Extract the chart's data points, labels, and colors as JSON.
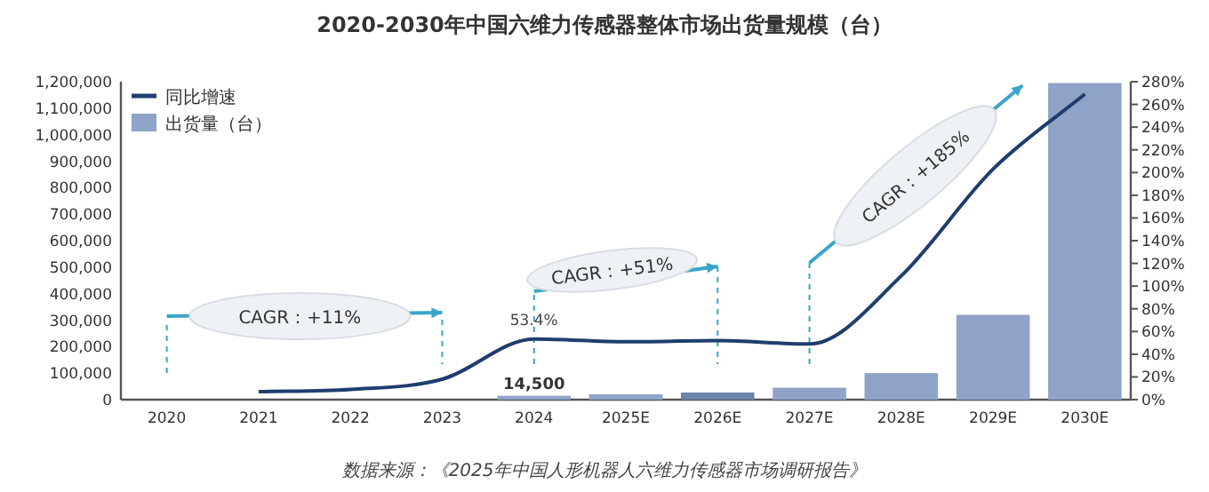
{
  "chart_data": {
    "type": "bar",
    "title": "2020-2030年中国六维力传感器整体市场出货量规模（台）",
    "categories": [
      "2020",
      "2021",
      "2022",
      "2023",
      "2024",
      "2025E",
      "2026E",
      "2027E",
      "2028E",
      "2029E",
      "2030E"
    ],
    "series": [
      {
        "name": "同比增速",
        "type": "line",
        "axis": "y2",
        "color": "#1f3e6e",
        "values": [
          null,
          7,
          9,
          18,
          53.4,
          51,
          52,
          49,
          109,
          203,
          269
        ],
        "value_labels": [
          null,
          null,
          null,
          null,
          "53.4%",
          null,
          null,
          null,
          null,
          null,
          null
        ]
      },
      {
        "name": "出货量（台）",
        "color": "#8fa3c8",
        "colors": [
          null,
          null,
          null,
          null,
          "#8fa3c8",
          "#8fa3c8",
          "#6d84ab",
          "#8fa3c8",
          "#8fa3c8",
          "#8fa3c8",
          "#8fa3c8"
        ],
        "values": [
          null,
          null,
          null,
          null,
          14500,
          20000,
          27000,
          45000,
          100000,
          320000,
          1195000
        ],
        "value_labels": [
          null,
          null,
          null,
          null,
          "14,500",
          null,
          null,
          null,
          null,
          null,
          null
        ]
      }
    ],
    "ylim": [
      0,
      1200000
    ],
    "yticks": [
      {
        "value": 0,
        "label": "0"
      },
      {
        "value": 100000,
        "label": "100,000"
      },
      {
        "value": 200000,
        "label": "200,000"
      },
      {
        "value": 300000,
        "label": "300,000"
      },
      {
        "value": 400000,
        "label": "400,000"
      },
      {
        "value": 500000,
        "label": "500,000"
      },
      {
        "value": 600000,
        "label": "600,000"
      },
      {
        "value": 700000,
        "label": "700,000"
      },
      {
        "value": 800000,
        "label": "800,000"
      },
      {
        "value": 900000,
        "label": "900,000"
      },
      {
        "value": 1000000,
        "label": "1,000,000"
      },
      {
        "value": 1100000,
        "label": "1,100,000"
      },
      {
        "value": 1200000,
        "label": "1,200,000"
      }
    ],
    "y2lim": [
      0,
      280
    ],
    "y2ticks": [
      {
        "value": 0,
        "label": "0%"
      },
      {
        "value": 20,
        "label": "20%"
      },
      {
        "value": 40,
        "label": "40%"
      },
      {
        "value": 60,
        "label": "60%"
      },
      {
        "value": 80,
        "label": "80%"
      },
      {
        "value": 100,
        "label": "100%"
      },
      {
        "value": 120,
        "label": "120%"
      },
      {
        "value": 140,
        "label": "140%"
      },
      {
        "value": 160,
        "label": "160%"
      },
      {
        "value": 180,
        "label": "180%"
      },
      {
        "value": 200,
        "label": "200%"
      },
      {
        "value": 220,
        "label": "220%"
      },
      {
        "value": 240,
        "label": "240%"
      },
      {
        "value": 260,
        "label": "260%"
      },
      {
        "value": 280,
        "label": "280%"
      }
    ],
    "annotations": [
      "CAGR：+11%",
      "CAGR：+51%",
      "CAGR：+185%",
      "数据来源：《2025年中国人形机器人六维力传感器市场调研报告》"
    ],
    "legend": "top left",
    "grid": false
  }
}
